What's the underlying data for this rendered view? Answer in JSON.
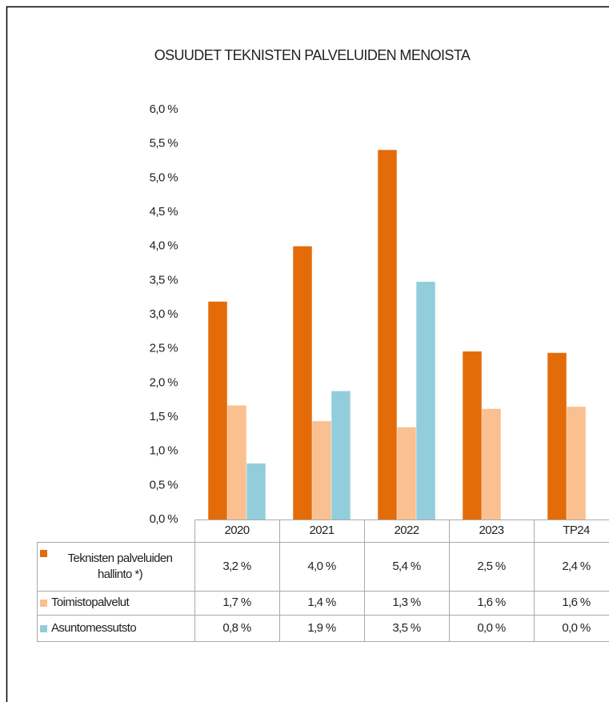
{
  "chart_data": {
    "type": "bar",
    "title": "OSUUDET TEKNISTEN PALVELUIDEN MENOISTA",
    "categories": [
      "2020",
      "2021",
      "2022",
      "2023",
      "TP24"
    ],
    "series": [
      {
        "name": "Teknisten palveluiden hallinto *)",
        "color": "#e36c09",
        "values": [
          3.19,
          4.0,
          5.41,
          2.46,
          2.44
        ],
        "value_labels": [
          "3,2 %",
          "4,0 %",
          "5,4 %",
          "2,5 %",
          "2,4 %"
        ]
      },
      {
        "name": "Toimistopalvelut",
        "color": "#fac090",
        "values": [
          1.67,
          1.44,
          1.35,
          1.62,
          1.65
        ],
        "value_labels": [
          "1,7 %",
          "1,4 %",
          "1,3 %",
          "1,6 %",
          "1,6 %"
        ]
      },
      {
        "name": "Asuntomessutsto",
        "color": "#92cddc",
        "values": [
          0.82,
          1.88,
          3.48,
          0,
          0
        ],
        "value_labels": [
          "0,8 %",
          "1,9 %",
          "3,5 %",
          "0,0 %",
          "0,0 %"
        ]
      }
    ],
    "ylim": [
      0,
      6
    ],
    "yticks": [
      {
        "value": 0,
        "label": "0,0 %"
      },
      {
        "value": 0.5,
        "label": "0,5 %"
      },
      {
        "value": 1,
        "label": "1,0 %"
      },
      {
        "value": 1.5,
        "label": "1,5 %"
      },
      {
        "value": 2,
        "label": "2,0 %"
      },
      {
        "value": 2.5,
        "label": "2,5 %"
      },
      {
        "value": 3,
        "label": "3,0 %"
      },
      {
        "value": 3.5,
        "label": "3,5 %"
      },
      {
        "value": 4,
        "label": "4,0 %"
      },
      {
        "value": 4.5,
        "label": "4,5 %"
      },
      {
        "value": 5,
        "label": "5,0 %"
      },
      {
        "value": 5.5,
        "label": "5,5 %"
      },
      {
        "value": 6,
        "label": "6,0 %"
      }
    ],
    "grid": false
  }
}
